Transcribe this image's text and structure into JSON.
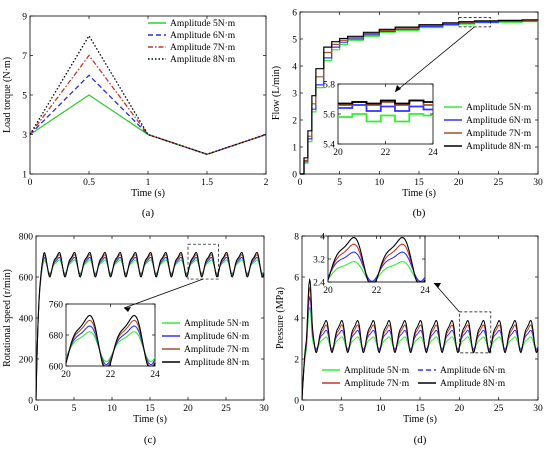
{
  "chart_data": [
    {
      "id": "a",
      "type": "line",
      "caption": "(a)",
      "xlabel": "Time (s)",
      "ylabel": "Load torque (N·m)",
      "xlim": [
        0,
        2
      ],
      "ylim": [
        1,
        9
      ],
      "xticks": [
        "0",
        "0.5",
        "1",
        "1.5",
        "2"
      ],
      "yticks": [
        "1",
        "3",
        "5",
        "7",
        "9"
      ],
      "legend_position": "top-right",
      "x": [
        0,
        0.5,
        1,
        1.5,
        2
      ],
      "series": [
        {
          "name": "Amplitude 5N·m",
          "color": "#33cc33",
          "dash": "solid",
          "values": [
            3,
            5,
            3,
            2,
            3
          ]
        },
        {
          "name": "Amplitude 6N·m",
          "color": "#2b2bd8",
          "dash": "dash",
          "values": [
            3,
            6,
            3,
            2,
            3
          ]
        },
        {
          "name": "Amplitude 7N·m",
          "color": "#c0392b",
          "dash": "dashdot",
          "values": [
            3,
            7,
            3,
            2,
            3
          ]
        },
        {
          "name": "Amplitude 8N·m",
          "color": "#000000",
          "dash": "dot",
          "values": [
            3,
            8,
            3,
            2,
            3
          ]
        }
      ]
    },
    {
      "id": "b",
      "type": "line",
      "caption": "(b)",
      "xlabel": "Time (s)",
      "ylabel": "Flow (L/min)",
      "xlim": [
        0,
        30
      ],
      "ylim": [
        0,
        6
      ],
      "xticks": [
        "0",
        "5",
        "10",
        "15",
        "20",
        "25",
        "30"
      ],
      "yticks": [
        "0",
        "1",
        "2",
        "3",
        "4",
        "5",
        "6"
      ],
      "legend_position": "right",
      "series": [
        {
          "name": "Amplitude 5N·m",
          "color": "#33ee33",
          "x": [
            0,
            0.5,
            1,
            1.5,
            2,
            3,
            4,
            5,
            6,
            8,
            10,
            12,
            15,
            18,
            20,
            22,
            25,
            28,
            30
          ],
          "values": [
            0,
            0.4,
            1.2,
            2.3,
            3.2,
            4.2,
            4.6,
            4.8,
            4.95,
            5.1,
            5.25,
            5.32,
            5.42,
            5.5,
            5.55,
            5.6,
            5.62,
            5.64,
            5.65
          ]
        },
        {
          "name": "Amplitude 6N·m",
          "color": "#3333ff",
          "x": [
            0,
            0.5,
            1,
            1.5,
            2,
            3,
            4,
            5,
            6,
            8,
            10,
            12,
            15,
            18,
            20,
            22,
            25,
            28,
            30
          ],
          "values": [
            0,
            0.45,
            1.3,
            2.4,
            3.3,
            4.3,
            4.7,
            4.88,
            5.0,
            5.15,
            5.28,
            5.36,
            5.46,
            5.54,
            5.59,
            5.62,
            5.65,
            5.67,
            5.68
          ]
        },
        {
          "name": "Amplitude 7N·m",
          "color": "#a0522d",
          "x": [
            0,
            0.5,
            1,
            1.5,
            2,
            3,
            4,
            5,
            6,
            8,
            10,
            12,
            15,
            18,
            20,
            22,
            25,
            28,
            30
          ],
          "values": [
            0,
            0.5,
            1.4,
            2.6,
            3.6,
            4.5,
            4.8,
            4.95,
            5.05,
            5.2,
            5.32,
            5.4,
            5.5,
            5.58,
            5.62,
            5.65,
            5.67,
            5.69,
            5.7
          ]
        },
        {
          "name": "Amplitude 8N·m",
          "color": "#000000",
          "x": [
            0,
            0.5,
            1,
            1.5,
            2,
            3,
            4,
            5,
            6,
            8,
            10,
            12,
            15,
            18,
            20,
            22,
            25,
            28,
            30
          ],
          "values": [
            0,
            0.6,
            1.6,
            2.9,
            3.9,
            4.7,
            4.9,
            5.02,
            5.1,
            5.25,
            5.36,
            5.44,
            5.53,
            5.6,
            5.64,
            5.67,
            5.69,
            5.71,
            5.72
          ]
        }
      ],
      "inset": {
        "xlim": [
          20,
          24
        ],
        "ylim": [
          5.4,
          5.8
        ],
        "xticks": [
          "20",
          "22",
          "24"
        ],
        "yticks": [
          "5.4",
          "5.6",
          "5.8"
        ],
        "series_levels": [
          {
            "values": [
              5.58,
              5.6,
              5.55,
              5.59,
              5.55,
              5.6,
              5.59
            ]
          },
          {
            "values": [
              5.64,
              5.66,
              5.62,
              5.65,
              5.62,
              5.65,
              5.63
            ]
          },
          {
            "values": [
              5.66,
              5.68,
              5.66,
              5.68,
              5.66,
              5.69,
              5.66
            ]
          },
          {
            "values": [
              5.67,
              5.68,
              5.67,
              5.69,
              5.67,
              5.69,
              5.68
            ]
          }
        ],
        "x_steps": [
          20,
          20.6,
          21.2,
          21.8,
          22.4,
          23.0,
          23.6,
          24
        ]
      }
    },
    {
      "id": "c",
      "type": "line",
      "caption": "(c)",
      "xlabel": "Time (s)",
      "ylabel": "Rotational speed (r/min)",
      "xlim": [
        0,
        30
      ],
      "ylim": [
        0,
        800
      ],
      "xticks": [
        "0",
        "5",
        "10",
        "15",
        "20",
        "25",
        "30"
      ],
      "yticks": [
        "0",
        "200",
        "400",
        "600",
        "800"
      ],
      "legend_position": "right",
      "oscillation": {
        "period_s": 2,
        "amplitudes": [
          35,
          45,
          55,
          65
        ],
        "means": [
          655,
          660,
          665,
          668
        ]
      },
      "series": [
        {
          "name": "Amplitude 5N·m",
          "color": "#33ee33"
        },
        {
          "name": "Amplitude 6N·m",
          "color": "#3333ff"
        },
        {
          "name": "Amplitude 7N·m",
          "color": "#a0522d"
        },
        {
          "name": "Amplitude 8N·m",
          "color": "#000000"
        }
      ],
      "inset": {
        "xlim": [
          20,
          24
        ],
        "ylim": [
          600,
          760
        ],
        "xticks": [
          "20",
          "22",
          "24"
        ],
        "yticks": [
          "600",
          "680",
          "760"
        ]
      }
    },
    {
      "id": "d",
      "type": "line",
      "caption": "(d)",
      "xlabel": "Time (s)",
      "ylabel": "Pressure (MPa)",
      "xlim": [
        0,
        30
      ],
      "ylim": [
        0,
        8
      ],
      "xticks": [
        "0",
        "5",
        "10",
        "15",
        "20",
        "25",
        "30"
      ],
      "yticks": [
        "0",
        "2",
        "4",
        "6",
        "8"
      ],
      "legend_position": "bottom",
      "oscillation": {
        "period_s": 2,
        "amplitudes": [
          0.35,
          0.5,
          0.7,
          0.85
        ],
        "means": [
          2.8,
          3.0,
          3.1,
          3.2
        ]
      },
      "series": [
        {
          "name": "Amplitude 5N·m",
          "color": "#33ee33"
        },
        {
          "name": "Amplitude 6N·m",
          "color": "#3333ff"
        },
        {
          "name": "Amplitude 7N·m",
          "color": "#c0392b"
        },
        {
          "name": "Amplitude 8N·m",
          "color": "#000000"
        }
      ],
      "inset": {
        "xlim": [
          20,
          24
        ],
        "ylim": [
          2.4,
          4
        ],
        "xticks": [
          "20",
          "22",
          "24"
        ],
        "yticks": [
          "2.4",
          "3.2",
          "4"
        ]
      }
    }
  ]
}
